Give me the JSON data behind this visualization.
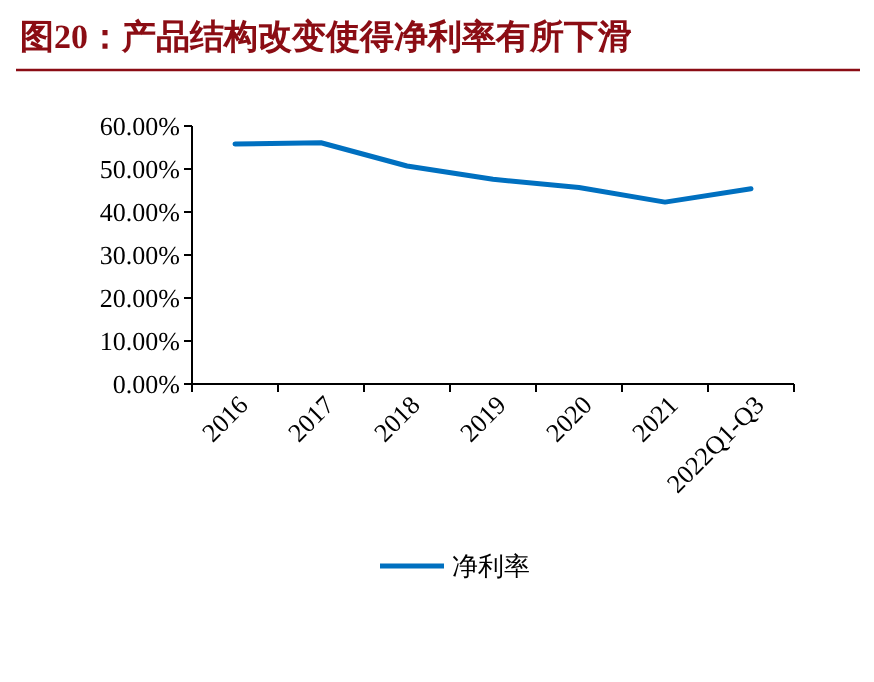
{
  "chart_data": {
    "type": "line",
    "title": "图20：产品结构改变使得净利率有所下滑",
    "categories": [
      "2016",
      "2017",
      "2018",
      "2019",
      "2020",
      "2021",
      "2022Q1-Q3"
    ],
    "series": [
      {
        "name": "净利率",
        "color": "#0070c0",
        "values": [
          55.8,
          56.1,
          50.7,
          47.6,
          45.7,
          42.3,
          45.4
        ]
      }
    ],
    "ylim": [
      0,
      60
    ],
    "yticks": [
      {
        "value": 0,
        "label": "0.00%"
      },
      {
        "value": 10,
        "label": "10.00%"
      },
      {
        "value": 20,
        "label": "20.00%"
      },
      {
        "value": 30,
        "label": "30.00%"
      },
      {
        "value": 40,
        "label": "40.00%"
      },
      {
        "value": 50,
        "label": "50.00%"
      },
      {
        "value": 60,
        "label": "60.00%"
      }
    ],
    "grid": false,
    "legend": "bottom",
    "marker": "none",
    "line_style": "solid"
  }
}
